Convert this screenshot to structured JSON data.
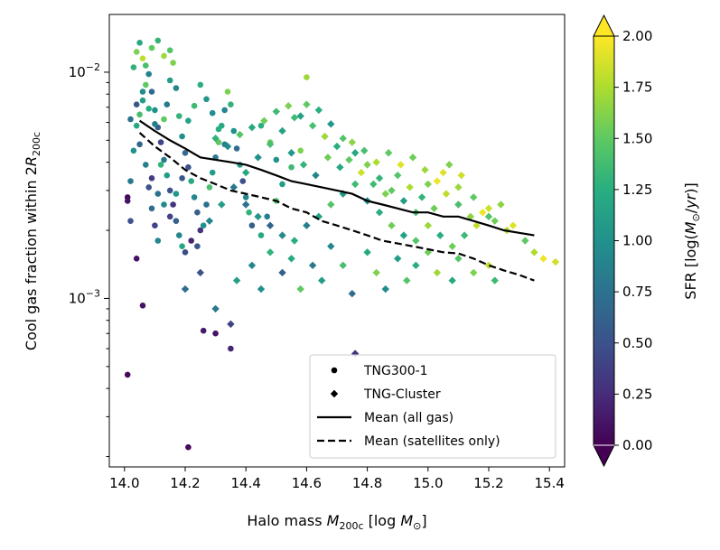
{
  "chart_data": {
    "type": "scatter",
    "title": "",
    "xlabel": "Halo mass M_200c [log M_⊙]",
    "ylabel": "Cool gas fraction within 2R_200c",
    "xlim": [
      13.95,
      15.45
    ],
    "ylim": [
      0.00018,
      0.018
    ],
    "yscale": "log",
    "xticks": [
      14.0,
      14.2,
      14.4,
      14.6,
      14.8,
      15.0,
      15.2,
      15.4
    ],
    "xtick_labels": [
      "14.0",
      "14.2",
      "14.4",
      "14.6",
      "14.8",
      "15.0",
      "15.2",
      "15.4"
    ],
    "ytick_major": [
      0.001,
      0.01
    ],
    "ytick_labels": [
      {
        "base": "10",
        "exp": "−3"
      },
      {
        "base": "10",
        "exp": "−2"
      }
    ],
    "legend": {
      "placement": "lower-right",
      "entries": [
        {
          "label": "TNG300-1",
          "marker": "circle"
        },
        {
          "label": "TNG-Cluster",
          "marker": "diamond"
        },
        {
          "label": "Mean (all gas)",
          "line": "solid"
        },
        {
          "label": "Mean (satellites only)",
          "line": "dashed"
        }
      ]
    },
    "colorbar": {
      "label": "SFR [log(M_⊙/yr)]",
      "colormap": "viridis",
      "range": [
        0.0,
        2.0
      ],
      "ticks": [
        "0.00",
        "0.25",
        "0.50",
        "0.75",
        "1.00",
        "1.25",
        "1.50",
        "1.75",
        "2.00"
      ],
      "extend": "both"
    },
    "series": [
      {
        "name": "Mean (all gas)",
        "style": "solid",
        "x": [
          14.05,
          14.1,
          14.15,
          14.2,
          14.25,
          14.3,
          14.35,
          14.4,
          14.45,
          14.5,
          14.55,
          14.6,
          14.65,
          14.7,
          14.75,
          14.8,
          14.85,
          14.9,
          14.95,
          15.0,
          15.05,
          15.1,
          15.15,
          15.2,
          15.25,
          15.3,
          15.35
        ],
        "y": [
          0.0061,
          0.0055,
          0.005,
          0.0046,
          0.0042,
          0.0041,
          0.004,
          0.0039,
          0.0037,
          0.0035,
          0.0033,
          0.0032,
          0.0031,
          0.003,
          0.0029,
          0.0027,
          0.0026,
          0.0025,
          0.0024,
          0.0024,
          0.0023,
          0.0023,
          0.0022,
          0.0021,
          0.002,
          0.00195,
          0.0019
        ]
      },
      {
        "name": "Mean (satellites only)",
        "style": "dashed",
        "x": [
          14.05,
          14.1,
          14.15,
          14.2,
          14.25,
          14.3,
          14.35,
          14.4,
          14.45,
          14.5,
          14.55,
          14.6,
          14.65,
          14.7,
          14.75,
          14.8,
          14.85,
          14.9,
          14.95,
          15.0,
          15.05,
          15.1,
          15.15,
          15.2,
          15.25,
          15.3,
          15.35
        ],
        "y": [
          0.0054,
          0.0047,
          0.0042,
          0.0037,
          0.0034,
          0.0032,
          0.003,
          0.0029,
          0.0028,
          0.0027,
          0.0025,
          0.0024,
          0.0022,
          0.0021,
          0.002,
          0.0019,
          0.0018,
          0.00175,
          0.0017,
          0.00165,
          0.0016,
          0.00158,
          0.0015,
          0.0014,
          0.00133,
          0.00127,
          0.0012
        ]
      }
    ],
    "points_tng300": [
      [
        14.01,
        0.0028,
        0.05
      ],
      [
        14.01,
        0.0027,
        0.1
      ],
      [
        14.01,
        0.00046,
        0.05
      ],
      [
        14.04,
        0.0015,
        0.1
      ],
      [
        14.06,
        0.00093,
        0.1
      ],
      [
        14.21,
        0.00022,
        0.05
      ],
      [
        14.26,
        0.00072,
        0.15
      ],
      [
        14.3,
        0.0007,
        0.1
      ],
      [
        14.35,
        0.0006,
        0.2
      ],
      [
        14.02,
        0.0022,
        0.5
      ],
      [
        14.02,
        0.0033,
        0.8
      ],
      [
        14.03,
        0.0045,
        1.0
      ],
      [
        14.04,
        0.0058,
        1.2
      ],
      [
        14.05,
        0.0065,
        1.4
      ],
      [
        14.06,
        0.0075,
        1.1
      ],
      [
        14.07,
        0.0088,
        1.5
      ],
      [
        14.03,
        0.0105,
        1.3
      ],
      [
        14.04,
        0.0123,
        1.6
      ],
      [
        14.05,
        0.0135,
        1.2
      ],
      [
        14.06,
        0.0115,
        1.8
      ],
      [
        14.08,
        0.0098,
        0.9
      ],
      [
        14.09,
        0.0082,
        0.7
      ],
      [
        14.1,
        0.0068,
        1.0
      ],
      [
        14.11,
        0.0057,
        0.6
      ],
      [
        14.12,
        0.0049,
        0.4
      ],
      [
        14.13,
        0.0041,
        0.8
      ],
      [
        14.14,
        0.0035,
        1.1
      ],
      [
        14.15,
        0.003,
        0.5
      ],
      [
        14.16,
        0.0026,
        0.3
      ],
      [
        14.17,
        0.0022,
        0.6
      ],
      [
        14.18,
        0.0019,
        0.9
      ],
      [
        14.19,
        0.0017,
        1.2
      ],
      [
        14.08,
        0.0031,
        0.5
      ],
      [
        14.09,
        0.0025,
        0.7
      ],
      [
        14.1,
        0.0021,
        0.4
      ],
      [
        14.11,
        0.0018,
        0.9
      ],
      [
        14.12,
        0.0039,
        1.3
      ],
      [
        14.13,
        0.0062,
        1.5
      ],
      [
        14.14,
        0.0072,
        0.8
      ],
      [
        14.15,
        0.0092,
        1.1
      ],
      [
        14.16,
        0.011,
        1.6
      ],
      [
        14.17,
        0.0085,
        0.9
      ],
      [
        14.18,
        0.0064,
        1.3
      ],
      [
        14.19,
        0.0052,
        1.0
      ],
      [
        14.2,
        0.0044,
        0.7
      ],
      [
        14.21,
        0.0038,
        0.5
      ],
      [
        14.22,
        0.0033,
        1.2
      ],
      [
        14.23,
        0.0028,
        0.9
      ],
      [
        14.24,
        0.0024,
        0.6
      ],
      [
        14.25,
        0.002,
        0.3
      ],
      [
        14.2,
        0.0016,
        0.45
      ],
      [
        14.22,
        0.0018,
        0.2
      ],
      [
        14.24,
        0.0017,
        0.55
      ],
      [
        14.26,
        0.0021,
        1.0
      ],
      [
        14.27,
        0.0026,
        0.75
      ],
      [
        14.28,
        0.0031,
        1.4
      ],
      [
        14.29,
        0.0036,
        1.1
      ],
      [
        14.3,
        0.0042,
        0.8
      ],
      [
        14.31,
        0.0049,
        1.5
      ],
      [
        14.32,
        0.0058,
        1.2
      ],
      [
        14.33,
        0.0068,
        0.9
      ],
      [
        14.34,
        0.0082,
        1.6
      ],
      [
        14.35,
        0.0072,
        1.3
      ],
      [
        14.36,
        0.0055,
        1.0
      ],
      [
        14.37,
        0.0046,
        0.7
      ],
      [
        14.38,
        0.0039,
        1.1
      ],
      [
        14.39,
        0.0033,
        0.5
      ],
      [
        14.4,
        0.0028,
        0.9
      ],
      [
        14.41,
        0.0024,
        1.3
      ],
      [
        14.42,
        0.0021,
        0.6
      ],
      [
        14.45,
        0.0019,
        1.2
      ],
      [
        14.47,
        0.0023,
        0.85
      ],
      [
        14.5,
        0.0027,
        1.45
      ],
      [
        14.52,
        0.0032,
        1.1
      ],
      [
        14.55,
        0.0038,
        1.35
      ],
      [
        14.58,
        0.0045,
        1.6
      ],
      [
        14.6,
        0.0095,
        1.7
      ],
      [
        14.45,
        0.0058,
        1.25
      ],
      [
        14.48,
        0.0049,
        1.55
      ],
      [
        14.5,
        0.0041,
        1.0
      ],
      [
        14.07,
        0.0107,
        1.4
      ],
      [
        14.09,
        0.0128,
        1.5
      ],
      [
        14.11,
        0.0138,
        1.3
      ],
      [
        14.13,
        0.0118,
        1.7
      ],
      [
        14.15,
        0.0125,
        1.45
      ],
      [
        14.05,
        0.0048,
        0.65
      ],
      [
        14.07,
        0.0039,
        0.85
      ],
      [
        14.09,
        0.0034,
        0.35
      ],
      [
        14.11,
        0.0029,
        0.75
      ],
      [
        14.13,
        0.0026,
        0.95
      ],
      [
        14.15,
        0.0023,
        0.4
      ],
      [
        14.17,
        0.0029,
        1.05
      ],
      [
        14.19,
        0.0034,
        0.55
      ],
      [
        14.21,
        0.0061,
        1.15
      ],
      [
        14.23,
        0.0071,
        1.35
      ],
      [
        14.25,
        0.0088,
        1.25
      ],
      [
        14.27,
        0.0076,
        1.05
      ],
      [
        14.29,
        0.0066,
        0.95
      ],
      [
        14.31,
        0.0056,
        1.25
      ],
      [
        14.33,
        0.0048,
        0.85
      ],
      [
        14.02,
        0.0062,
        0.75
      ],
      [
        14.04,
        0.0072,
        0.55
      ],
      [
        14.06,
        0.0082,
        0.95
      ],
      [
        14.08,
        0.0069,
        1.25
      ],
      [
        14.1,
        0.0059,
        0.85
      ]
    ],
    "points_tngcluster": [
      [
        14.2,
        0.0011,
        0.7
      ],
      [
        14.25,
        0.0013,
        0.5
      ],
      [
        14.3,
        0.0009,
        0.8
      ],
      [
        14.35,
        0.00077,
        0.4
      ],
      [
        14.37,
        0.0012,
        1.1
      ],
      [
        14.42,
        0.0014,
        0.9
      ],
      [
        14.45,
        0.0011,
        1.0
      ],
      [
        14.48,
        0.0016,
        1.3
      ],
      [
        14.52,
        0.0013,
        0.6
      ],
      [
        14.55,
        0.0015,
        1.2
      ],
      [
        14.58,
        0.0011,
        1.5
      ],
      [
        14.62,
        0.0014,
        0.8
      ],
      [
        14.65,
        0.0012,
        1.1
      ],
      [
        14.68,
        0.0017,
        0.9
      ],
      [
        14.72,
        0.0014,
        1.4
      ],
      [
        14.75,
        0.00105,
        0.7
      ],
      [
        14.76,
        0.00057,
        0.3
      ],
      [
        14.8,
        0.0016,
        1.2
      ],
      [
        14.83,
        0.0013,
        1.6
      ],
      [
        14.86,
        0.0011,
        0.95
      ],
      [
        14.9,
        0.0015,
        1.1
      ],
      [
        14.93,
        0.0012,
        1.45
      ],
      [
        14.96,
        0.0014,
        1.25
      ],
      [
        15.0,
        0.0016,
        1.55
      ],
      [
        15.03,
        0.0013,
        1.7
      ],
      [
        15.08,
        0.0012,
        1.2
      ],
      [
        15.1,
        0.0015,
        1.45
      ],
      [
        15.15,
        0.0013,
        1.6
      ],
      [
        15.2,
        0.0014,
        1.8
      ],
      [
        15.22,
        0.0012,
        1.35
      ],
      [
        14.28,
        0.0022,
        0.9
      ],
      [
        14.32,
        0.0026,
        1.1
      ],
      [
        14.36,
        0.0031,
        0.8
      ],
      [
        14.4,
        0.0036,
        1.2
      ],
      [
        14.44,
        0.0042,
        1.0
      ],
      [
        14.48,
        0.0048,
        1.4
      ],
      [
        14.52,
        0.0055,
        1.15
      ],
      [
        14.56,
        0.0063,
        1.35
      ],
      [
        14.6,
        0.0072,
        1.5
      ],
      [
        14.64,
        0.0068,
        1.25
      ],
      [
        14.68,
        0.0059,
        1.05
      ],
      [
        14.72,
        0.0051,
        1.45
      ],
      [
        14.76,
        0.0044,
        1.2
      ],
      [
        14.8,
        0.0039,
        1.6
      ],
      [
        14.84,
        0.0034,
        1.3
      ],
      [
        14.88,
        0.003,
        1.5
      ],
      [
        14.92,
        0.0027,
        1.1
      ],
      [
        14.96,
        0.0024,
        1.4
      ],
      [
        15.0,
        0.0021,
        1.7
      ],
      [
        15.04,
        0.0019,
        1.25
      ],
      [
        15.08,
        0.0017,
        1.55
      ],
      [
        15.12,
        0.0019,
        1.35
      ],
      [
        15.16,
        0.0021,
        1.8
      ],
      [
        15.2,
        0.0023,
        1.45
      ],
      [
        15.24,
        0.0026,
        1.65
      ],
      [
        15.28,
        0.0021,
        1.9
      ],
      [
        15.32,
        0.0018,
        1.5
      ],
      [
        15.35,
        0.0016,
        1.75
      ],
      [
        15.38,
        0.0015,
        1.95
      ],
      [
        15.42,
        0.00145,
        1.85
      ],
      [
        14.3,
        0.0051,
        1.3
      ],
      [
        14.34,
        0.0047,
        0.95
      ],
      [
        14.38,
        0.0053,
        1.45
      ],
      [
        14.42,
        0.0057,
        1.2
      ],
      [
        14.46,
        0.0061,
        1.55
      ],
      [
        14.5,
        0.0067,
        1.35
      ],
      [
        14.54,
        0.0071,
        1.6
      ],
      [
        14.58,
        0.0064,
        1.15
      ],
      [
        14.62,
        0.0058,
        1.4
      ],
      [
        14.66,
        0.0052,
        1.7
      ],
      [
        14.7,
        0.0047,
        1.25
      ],
      [
        14.74,
        0.0041,
        1.5
      ],
      [
        14.78,
        0.0036,
        1.85
      ],
      [
        14.82,
        0.0032,
        1.35
      ],
      [
        14.86,
        0.0029,
        1.6
      ],
      [
        14.9,
        0.0035,
        1.45
      ],
      [
        14.94,
        0.0031,
        1.75
      ],
      [
        14.98,
        0.0028,
        1.3
      ],
      [
        15.02,
        0.0025,
        1.55
      ],
      [
        15.06,
        0.0029,
        1.8
      ],
      [
        15.1,
        0.0026,
        1.4
      ],
      [
        15.14,
        0.0023,
        1.65
      ],
      [
        15.18,
        0.0024,
        1.95
      ],
      [
        15.22,
        0.0022,
        1.55
      ],
      [
        15.26,
        0.002,
        1.75
      ],
      [
        14.4,
        0.0026,
        0.75
      ],
      [
        14.44,
        0.0023,
        1.05
      ],
      [
        14.48,
        0.0021,
        0.65
      ],
      [
        14.52,
        0.0019,
        0.95
      ],
      [
        14.56,
        0.0018,
        1.25
      ],
      [
        14.6,
        0.0021,
        0.85
      ],
      [
        14.64,
        0.0023,
        1.15
      ],
      [
        14.68,
        0.0026,
        1.45
      ],
      [
        14.72,
        0.0029,
        1.05
      ],
      [
        14.76,
        0.0032,
        1.35
      ],
      [
        14.8,
        0.0027,
        0.95
      ],
      [
        14.84,
        0.0024,
        1.25
      ],
      [
        14.88,
        0.0021,
        1.55
      ],
      [
        14.92,
        0.0019,
        1.15
      ],
      [
        14.96,
        0.0018,
        1.45
      ],
      [
        15.0,
        0.0032,
        1.6
      ],
      [
        15.05,
        0.0036,
        1.9
      ],
      [
        15.1,
        0.0031,
        1.7
      ],
      [
        15.15,
        0.0028,
        1.5
      ],
      [
        15.2,
        0.0025,
        1.85
      ],
      [
        14.55,
        0.0044,
        1.05
      ],
      [
        14.59,
        0.0039,
        1.3
      ],
      [
        14.63,
        0.0035,
        0.9
      ],
      [
        14.67,
        0.0042,
        1.55
      ],
      [
        14.71,
        0.0038,
        1.2
      ],
      [
        14.75,
        0.0049,
        1.65
      ],
      [
        14.79,
        0.0045,
        1.4
      ],
      [
        14.83,
        0.004,
        1.75
      ],
      [
        14.87,
        0.0044,
        1.5
      ],
      [
        14.91,
        0.0039,
        1.9
      ],
      [
        14.95,
        0.0042,
        1.55
      ],
      [
        14.99,
        0.0037,
        1.7
      ],
      [
        15.03,
        0.0033,
        1.95
      ],
      [
        15.07,
        0.0039,
        1.6
      ],
      [
        15.11,
        0.0035,
        1.85
      ]
    ]
  }
}
